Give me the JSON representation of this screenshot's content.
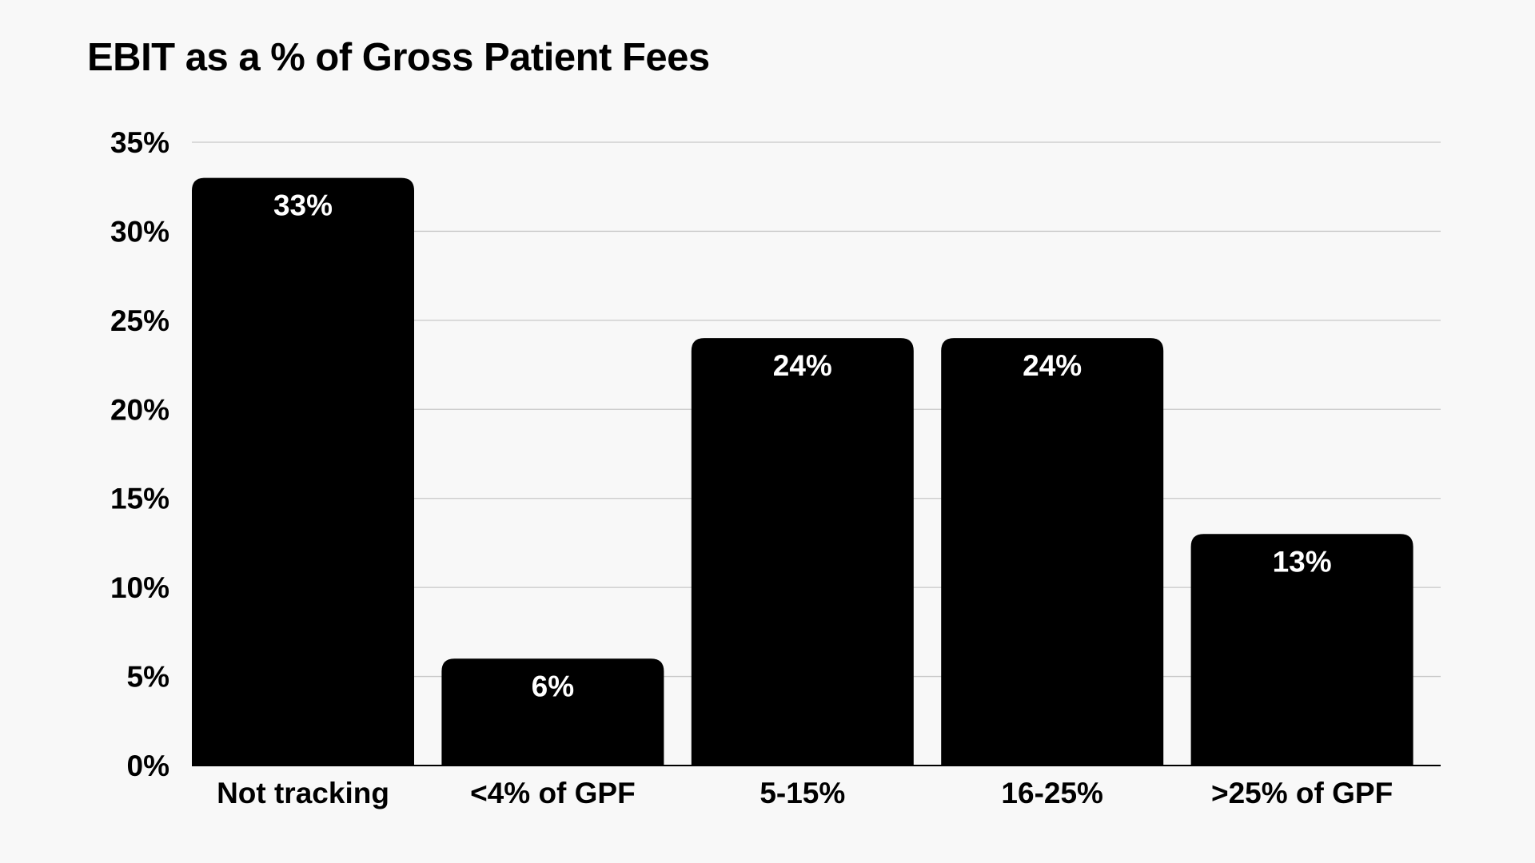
{
  "chart_data": {
    "type": "bar",
    "title": "EBIT as a % of Gross Patient Fees",
    "xlabel": "",
    "ylabel": "",
    "categories": [
      "Not tracking",
      "<4% of GPF",
      "5-15%",
      "16-25%",
      ">25% of GPF"
    ],
    "values": [
      33,
      6,
      24,
      24,
      13
    ],
    "value_labels": [
      "33%",
      "6%",
      "24%",
      "24%",
      "13%"
    ],
    "ylim": [
      0,
      35
    ],
    "y_ticks": [
      0,
      5,
      10,
      15,
      20,
      25,
      30,
      35
    ],
    "y_tick_labels": [
      "0%",
      "5%",
      "10%",
      "15%",
      "20%",
      "25%",
      "30%",
      "35%"
    ],
    "grid": true,
    "legend": "none",
    "colors": {
      "bar": "#000000",
      "data_label": "#ffffff",
      "grid": "#c8c8c8",
      "background": "#f8f8f8"
    }
  }
}
